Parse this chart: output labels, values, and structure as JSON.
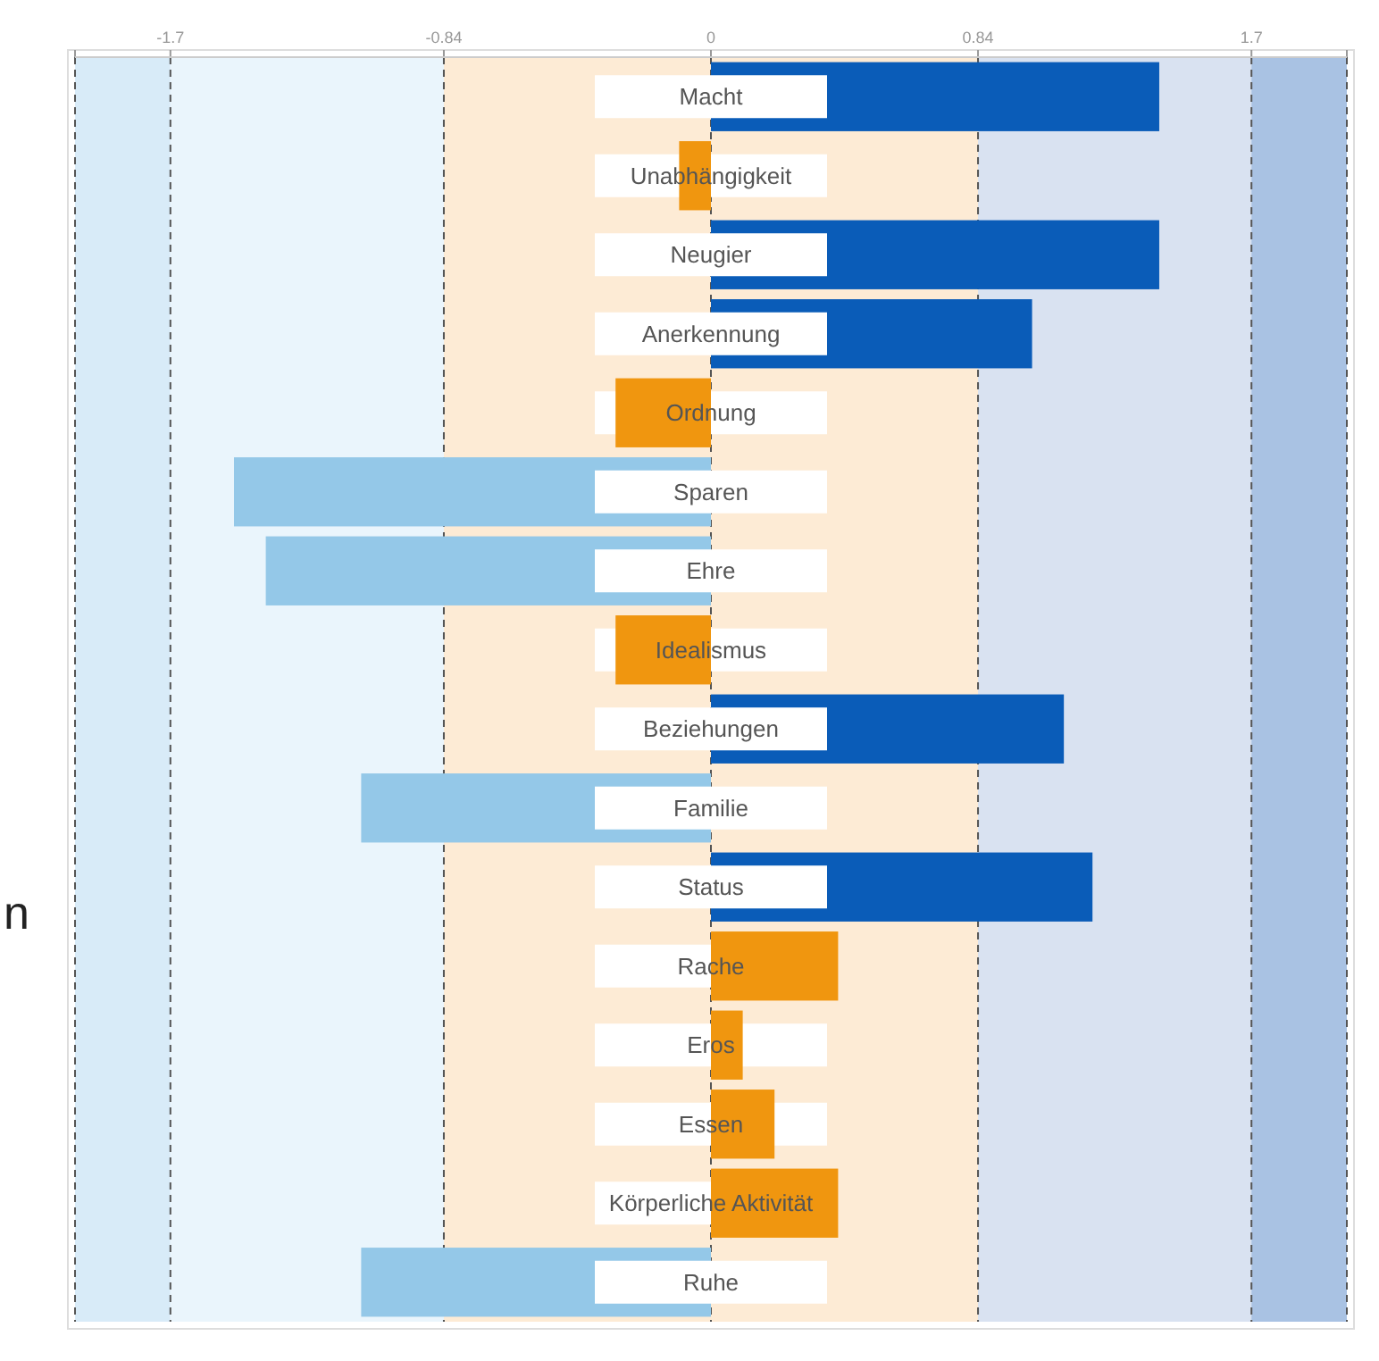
{
  "chart_data": {
    "type": "bar",
    "orientation": "horizontal",
    "categories": [
      "Macht",
      "Unabhängigkeit",
      "Neugier",
      "Anerkennung",
      "Ordnung",
      "Sparen",
      "Ehre",
      "Idealismus",
      "Beziehungen",
      "Familie",
      "Status",
      "Rache",
      "Eros",
      "Essen",
      "Körperliche Aktivität",
      "Ruhe"
    ],
    "values": [
      1.41,
      -0.1,
      1.41,
      1.01,
      -0.3,
      -1.5,
      -1.4,
      -0.3,
      1.11,
      -1.1,
      1.2,
      0.4,
      0.1,
      0.2,
      0.4,
      -1.1
    ],
    "colors": [
      "#0a5cb8",
      "#f0960f",
      "#0a5cb8",
      "#0a5cb8",
      "#f0960f",
      "#94c8e8",
      "#94c8e8",
      "#f0960f",
      "#0a5cb8",
      "#94c8e8",
      "#0a5cb8",
      "#f0960f",
      "#f0960f",
      "#f0960f",
      "#f0960f",
      "#94c8e8"
    ],
    "xlim": [
      -2,
      2
    ],
    "xticks": [
      {
        "value": -2,
        "label": null
      },
      {
        "value": -1.7,
        "label": "-1.7"
      },
      {
        "value": -0.84,
        "label": "-0.84"
      },
      0,
      {
        "value": 0.84,
        "label": "0.84"
      },
      {
        "value": 1.7,
        "label": "1.7"
      },
      {
        "value": 2,
        "label": null
      }
    ],
    "bands": [
      {
        "axis": "x",
        "from": -2,
        "to": -1.7,
        "color": "#d8ebf8"
      },
      {
        "axis": "x",
        "from": -1.7,
        "to": -0.84,
        "color": "#eaf5fc"
      },
      {
        "axis": "x",
        "from": -0.84,
        "to": 0.84,
        "color": "#fdebd5"
      },
      {
        "axis": "x",
        "from": 0.84,
        "to": 1.7,
        "color": "#d9e2f1"
      },
      {
        "axis": "x",
        "from": 1.7,
        "to": 2,
        "color": "#a9c2e3"
      }
    ],
    "grid": "x",
    "annotations": [
      "n"
    ]
  }
}
